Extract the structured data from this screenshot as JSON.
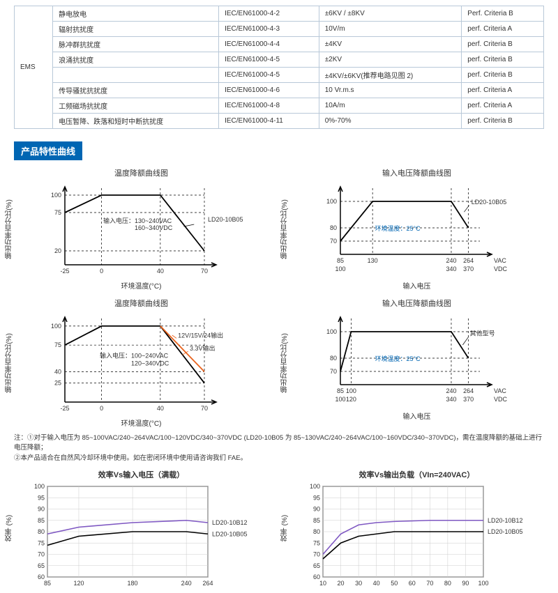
{
  "table": {
    "col1_label": "EMS",
    "rows": [
      [
        "静电放电",
        "IEC/EN61000-4-2",
        "±6KV / ±8KV",
        "Perf. Criteria B"
      ],
      [
        "辐射抗扰度",
        "IEC/EN61000-4-3",
        "10V/m",
        "perf. Criteria A"
      ],
      [
        "脉冲群抗扰度",
        "IEC/EN61000-4-4",
        "±4KV",
        "perf. Criteria B"
      ],
      [
        "浪涌抗扰度",
        "IEC/EN61000-4-5",
        "±2KV",
        "perf. Criteria B"
      ],
      [
        "",
        "IEC/EN61000-4-5",
        "±4KV/±6KV(推荐电路见图 2)",
        "perf. Criteria B"
      ],
      [
        "传导骚扰抗扰度",
        "IEC/EN61000-4-6",
        "10 Vr.m.s",
        "perf. Criteria A"
      ],
      [
        "工频磁场抗扰度",
        "IEC/EN61000-4-8",
        "10A/m",
        "perf. Criteria A"
      ],
      [
        "电压暂降、跌落和短时中断抗扰度",
        "IEC/EN61000-4-11",
        "0%-70%",
        "perf. Criteria B"
      ]
    ],
    "border_color": "#b8c8d8"
  },
  "section_header": "产品特性曲线",
  "header_bg": "#0066b3",
  "chart1": {
    "title": "温度降额曲线图",
    "ylabel": "输出功率百分比(%)",
    "xlabel": "环境温度(°C)",
    "x_ticks": [
      -25,
      0,
      40,
      70
    ],
    "y_ticks": [
      20,
      75,
      100
    ],
    "poly": [
      [
        -25,
        75
      ],
      [
        0,
        100
      ],
      [
        40,
        100
      ],
      [
        70,
        20
      ]
    ],
    "dash_lines_y": [
      100,
      75,
      20
    ],
    "dash_lines_x": [
      0,
      40,
      70
    ],
    "anno_line1": "输入电压：130~240VAC",
    "anno_line2": "　　　　　160~340VDC",
    "label_right": "LD20-10B05",
    "line_color": "#000"
  },
  "chart2": {
    "title": "输入电压降额曲线图",
    "ylabel": "输出功率百分比(%)",
    "xlabel": "输入电压",
    "x_ticks_top": [
      "85",
      "130",
      "240",
      "264",
      "VAC"
    ],
    "x_ticks_bot": [
      "100",
      "",
      "340",
      "370",
      "VDC"
    ],
    "y_ticks": [
      70,
      80,
      100
    ],
    "poly": [
      [
        85,
        70
      ],
      [
        130,
        100
      ],
      [
        240,
        100
      ],
      [
        264,
        80
      ]
    ],
    "anno": "环境温度：25°C",
    "label_right": "LD20-10B05",
    "line_color": "#000"
  },
  "chart3": {
    "title": "温度降额曲线图",
    "ylabel": "输出功率百分比(%)",
    "xlabel": "环境温度(°C)",
    "x_ticks": [
      -25,
      0,
      40,
      70
    ],
    "y_ticks": [
      25,
      40,
      75,
      100
    ],
    "poly_black": [
      [
        -25,
        75
      ],
      [
        0,
        100
      ],
      [
        40,
        100
      ],
      [
        70,
        25
      ]
    ],
    "seg_red": [
      [
        40,
        100
      ],
      [
        70,
        40
      ]
    ],
    "anno_line1": "输入电压：100~240VAC",
    "anno_line2": "　　　　　120~340VDC",
    "label_12v": "12V/15V/24输出",
    "label_33v": "3.3V输出",
    "red_color": "#e8631e"
  },
  "chart4": {
    "title": "输入电压降额曲线图",
    "ylabel": "输出功率百分比(%)",
    "xlabel": "输入电压",
    "x_ticks_top": [
      "85",
      "100",
      "240",
      "264",
      "VAC"
    ],
    "x_ticks_bot": [
      "100",
      "120",
      "340",
      "370",
      "VDC"
    ],
    "y_ticks": [
      70,
      80,
      100
    ],
    "poly": [
      [
        85,
        70
      ],
      [
        100,
        100
      ],
      [
        240,
        100
      ],
      [
        264,
        80
      ]
    ],
    "anno": "环境温度：25°C",
    "label_right": "其他型号",
    "line_color": "#000"
  },
  "notes": {
    "n1": "注：①对于输入电压为 85~100VAC/240~264VAC/100~120VDC/340~370VDC (LD20-10B05 为 85~130VAC/240~264VAC/100~160VDC/340~370VDC)，需在温度降额的基础上进行电压降额；",
    "n2": "②本产品适合在自然风冷却环境中使用。如在密闭环境中使用请咨询我们 FAE。"
  },
  "eff1": {
    "title": "效率Vs输入电压（满载）",
    "ylabel": "效率 (%)",
    "x_ticks": [
      85,
      120,
      180,
      240,
      264
    ],
    "y_ticks": [
      60,
      65,
      70,
      75,
      80,
      85,
      90,
      95,
      100
    ],
    "series_a": {
      "label": "LD20-10B12",
      "color": "#7e57c2",
      "pts": [
        [
          85,
          79
        ],
        [
          120,
          82
        ],
        [
          180,
          84
        ],
        [
          240,
          85
        ],
        [
          264,
          84
        ]
      ]
    },
    "series_b": {
      "label": "LD20-10B05",
      "color": "#000",
      "pts": [
        [
          85,
          74
        ],
        [
          120,
          78
        ],
        [
          180,
          80
        ],
        [
          240,
          80
        ],
        [
          264,
          79
        ]
      ]
    }
  },
  "eff2": {
    "title": "效率Vs输出负载（VIn=240VAC）",
    "ylabel": "效率 (%)",
    "x_ticks": [
      10,
      20,
      30,
      40,
      50,
      60,
      70,
      80,
      90,
      100
    ],
    "y_ticks": [
      60,
      65,
      70,
      75,
      80,
      85,
      90,
      95,
      100
    ],
    "series_a": {
      "label": "LD20-10B12",
      "color": "#7e57c2",
      "pts": [
        [
          10,
          70
        ],
        [
          20,
          79
        ],
        [
          30,
          83
        ],
        [
          40,
          84
        ],
        [
          50,
          84.5
        ],
        [
          70,
          85
        ],
        [
          100,
          85
        ]
      ]
    },
    "series_b": {
      "label": "LD20-10B05",
      "color": "#000",
      "pts": [
        [
          10,
          68
        ],
        [
          20,
          75
        ],
        [
          30,
          78
        ],
        [
          40,
          79
        ],
        [
          50,
          80
        ],
        [
          70,
          80
        ],
        [
          100,
          80
        ]
      ]
    }
  }
}
